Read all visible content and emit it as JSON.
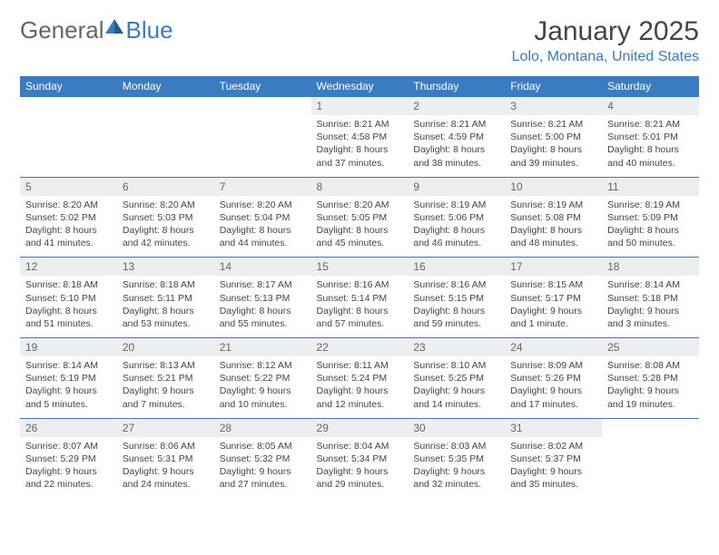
{
  "brand": {
    "part1": "General",
    "part2": "Blue"
  },
  "title": "January 2025",
  "location": "Lolo, Montana, United States",
  "colors": {
    "accent": "#3b7bbf",
    "header_bg": "#3b7bbf",
    "daynum_bg": "#eceef0",
    "text": "#444444",
    "border": "#3b7bbf"
  },
  "weekdays": [
    "Sunday",
    "Monday",
    "Tuesday",
    "Wednesday",
    "Thursday",
    "Friday",
    "Saturday"
  ],
  "weeks": [
    [
      null,
      null,
      null,
      {
        "day": "1",
        "sunrise": "8:21 AM",
        "sunset": "4:58 PM",
        "daylight": "8 hours and 37 minutes."
      },
      {
        "day": "2",
        "sunrise": "8:21 AM",
        "sunset": "4:59 PM",
        "daylight": "8 hours and 38 minutes."
      },
      {
        "day": "3",
        "sunrise": "8:21 AM",
        "sunset": "5:00 PM",
        "daylight": "8 hours and 39 minutes."
      },
      {
        "day": "4",
        "sunrise": "8:21 AM",
        "sunset": "5:01 PM",
        "daylight": "8 hours and 40 minutes."
      }
    ],
    [
      {
        "day": "5",
        "sunrise": "8:20 AM",
        "sunset": "5:02 PM",
        "daylight": "8 hours and 41 minutes."
      },
      {
        "day": "6",
        "sunrise": "8:20 AM",
        "sunset": "5:03 PM",
        "daylight": "8 hours and 42 minutes."
      },
      {
        "day": "7",
        "sunrise": "8:20 AM",
        "sunset": "5:04 PM",
        "daylight": "8 hours and 44 minutes."
      },
      {
        "day": "8",
        "sunrise": "8:20 AM",
        "sunset": "5:05 PM",
        "daylight": "8 hours and 45 minutes."
      },
      {
        "day": "9",
        "sunrise": "8:19 AM",
        "sunset": "5:06 PM",
        "daylight": "8 hours and 46 minutes."
      },
      {
        "day": "10",
        "sunrise": "8:19 AM",
        "sunset": "5:08 PM",
        "daylight": "8 hours and 48 minutes."
      },
      {
        "day": "11",
        "sunrise": "8:19 AM",
        "sunset": "5:09 PM",
        "daylight": "8 hours and 50 minutes."
      }
    ],
    [
      {
        "day": "12",
        "sunrise": "8:18 AM",
        "sunset": "5:10 PM",
        "daylight": "8 hours and 51 minutes."
      },
      {
        "day": "13",
        "sunrise": "8:18 AM",
        "sunset": "5:11 PM",
        "daylight": "8 hours and 53 minutes."
      },
      {
        "day": "14",
        "sunrise": "8:17 AM",
        "sunset": "5:13 PM",
        "daylight": "8 hours and 55 minutes."
      },
      {
        "day": "15",
        "sunrise": "8:16 AM",
        "sunset": "5:14 PM",
        "daylight": "8 hours and 57 minutes."
      },
      {
        "day": "16",
        "sunrise": "8:16 AM",
        "sunset": "5:15 PM",
        "daylight": "8 hours and 59 minutes."
      },
      {
        "day": "17",
        "sunrise": "8:15 AM",
        "sunset": "5:17 PM",
        "daylight": "9 hours and 1 minute."
      },
      {
        "day": "18",
        "sunrise": "8:14 AM",
        "sunset": "5:18 PM",
        "daylight": "9 hours and 3 minutes."
      }
    ],
    [
      {
        "day": "19",
        "sunrise": "8:14 AM",
        "sunset": "5:19 PM",
        "daylight": "9 hours and 5 minutes."
      },
      {
        "day": "20",
        "sunrise": "8:13 AM",
        "sunset": "5:21 PM",
        "daylight": "9 hours and 7 minutes."
      },
      {
        "day": "21",
        "sunrise": "8:12 AM",
        "sunset": "5:22 PM",
        "daylight": "9 hours and 10 minutes."
      },
      {
        "day": "22",
        "sunrise": "8:11 AM",
        "sunset": "5:24 PM",
        "daylight": "9 hours and 12 minutes."
      },
      {
        "day": "23",
        "sunrise": "8:10 AM",
        "sunset": "5:25 PM",
        "daylight": "9 hours and 14 minutes."
      },
      {
        "day": "24",
        "sunrise": "8:09 AM",
        "sunset": "5:26 PM",
        "daylight": "9 hours and 17 minutes."
      },
      {
        "day": "25",
        "sunrise": "8:08 AM",
        "sunset": "5:28 PM",
        "daylight": "9 hours and 19 minutes."
      }
    ],
    [
      {
        "day": "26",
        "sunrise": "8:07 AM",
        "sunset": "5:29 PM",
        "daylight": "9 hours and 22 minutes."
      },
      {
        "day": "27",
        "sunrise": "8:06 AM",
        "sunset": "5:31 PM",
        "daylight": "9 hours and 24 minutes."
      },
      {
        "day": "28",
        "sunrise": "8:05 AM",
        "sunset": "5:32 PM",
        "daylight": "9 hours and 27 minutes."
      },
      {
        "day": "29",
        "sunrise": "8:04 AM",
        "sunset": "5:34 PM",
        "daylight": "9 hours and 29 minutes."
      },
      {
        "day": "30",
        "sunrise": "8:03 AM",
        "sunset": "5:35 PM",
        "daylight": "9 hours and 32 minutes."
      },
      {
        "day": "31",
        "sunrise": "8:02 AM",
        "sunset": "5:37 PM",
        "daylight": "9 hours and 35 minutes."
      },
      null
    ]
  ],
  "labels": {
    "sunrise": "Sunrise:",
    "sunset": "Sunset:",
    "daylight": "Daylight:"
  }
}
